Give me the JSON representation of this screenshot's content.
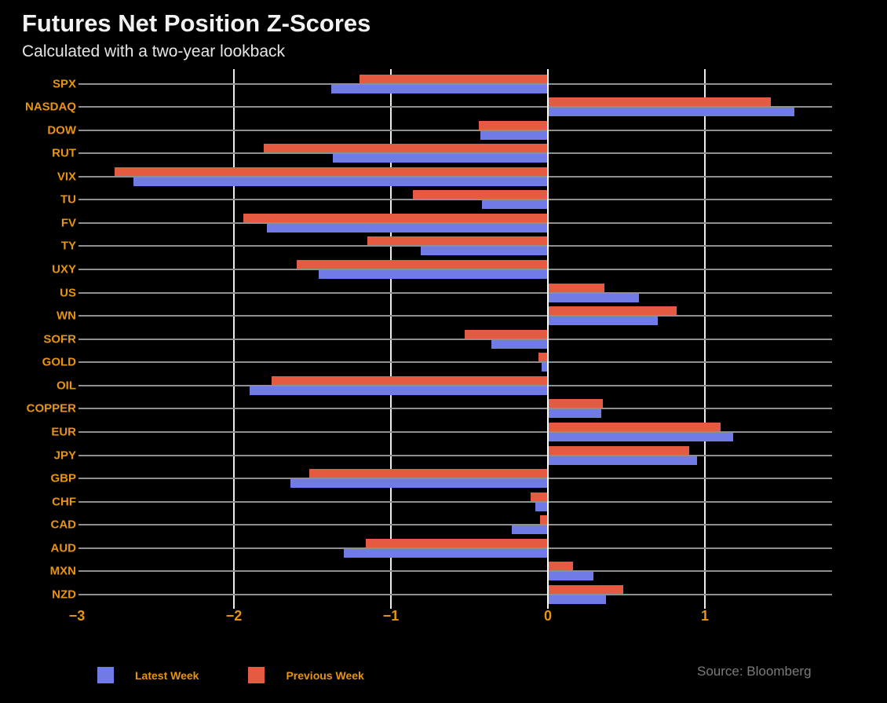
{
  "header": {
    "title": "Futures Net Position Z-Scores",
    "subtitle": "Calculated with a two-year lookback"
  },
  "source_note": "Source: Bloomberg",
  "colors": {
    "background": "#000000",
    "latest_week_bar": "#717be6",
    "previous_week_bar": "#e45b41",
    "category_label": "#e8940e",
    "gridline": "#ececec",
    "track_line": "#8f8f8f",
    "title_text": "#f2f2f2",
    "source_text": "#7c7c7c"
  },
  "legend": {
    "items": [
      {
        "label": "Latest Week",
        "color": "#717be6"
      },
      {
        "label": "Previous Week",
        "color": "#e45b41"
      }
    ]
  },
  "chart_data": {
    "type": "bar",
    "orientation": "horizontal",
    "title": "Futures Net Position Z-Scores",
    "subtitle": "Calculated with a two-year lookback",
    "xlabel": "",
    "ylabel": "",
    "xlim": [
      -3.0,
      1.81
    ],
    "grid": true,
    "legend_position": "bottom",
    "x_tick_values": [
      -3,
      -2,
      -1,
      0,
      1
    ],
    "x_tick_labels": [
      "−3",
      "−2",
      "−1",
      "0",
      "1"
    ],
    "categories": [
      "SPX",
      "NASDAQ",
      "DOW",
      "RUT",
      "VIX",
      "TU",
      "FV",
      "TY",
      "UXY",
      "US",
      "WN",
      "SOFR",
      "GOLD",
      "OIL",
      "COPPER",
      "EUR",
      "JPY",
      "GBP",
      "CHF",
      "CAD",
      "AUD",
      "MXN",
      "NZD"
    ],
    "series": [
      {
        "name": "Latest Week",
        "color": "#717be6",
        "values": [
          -1.38,
          1.57,
          -0.43,
          -1.37,
          -2.64,
          -0.42,
          -1.79,
          -0.81,
          -1.46,
          0.58,
          0.7,
          -0.36,
          -0.04,
          -1.9,
          0.34,
          1.18,
          0.95,
          -1.64,
          -0.08,
          -0.23,
          -1.3,
          0.29,
          0.37
        ]
      },
      {
        "name": "Previous Week",
        "color": "#e45b41",
        "values": [
          -1.2,
          1.42,
          -0.44,
          -1.81,
          -2.76,
          -0.86,
          -1.94,
          -1.15,
          -1.6,
          0.36,
          0.82,
          -0.53,
          -0.06,
          -1.76,
          0.35,
          1.1,
          0.9,
          -1.52,
          -0.11,
          -0.05,
          -1.16,
          0.16,
          0.48
        ]
      }
    ]
  }
}
